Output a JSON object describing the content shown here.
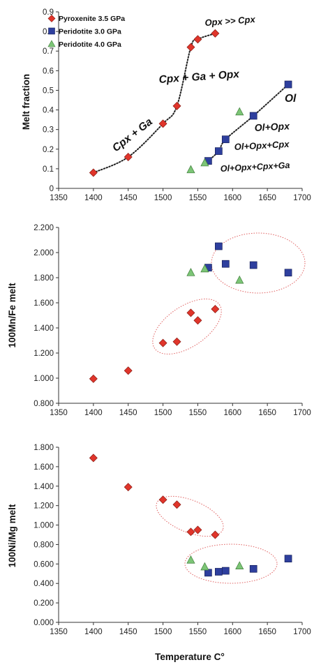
{
  "legend": [
    {
      "label": "Pyroxenite 3.5 GPa",
      "marker": "diamond",
      "color": "#e0352b"
    },
    {
      "label": "Peridotite 3.0 GPa",
      "marker": "square",
      "color": "#2e3f9e"
    },
    {
      "label": "Peridotite 4.0 GPa",
      "marker": "triangle",
      "color": "#7cc576"
    }
  ],
  "chart_data": [
    {
      "type": "scatter",
      "ylabel": "Melt fraction",
      "xlim": [
        1350,
        1700
      ],
      "ylim": [
        0,
        0.9
      ],
      "xticks": [
        "1350",
        "1400",
        "1450",
        "1500",
        "1550",
        "1600",
        "1650",
        "1700"
      ],
      "yticks": [
        "0",
        "0.1",
        "0.2",
        "0.3",
        "0.4",
        "0.5",
        "0.6",
        "0.7",
        "0.8",
        "0.9"
      ],
      "series": [
        {
          "name": "Pyroxenite 3.5 GPa",
          "x": [
            1400,
            1450,
            1500,
            1520,
            1540,
            1550,
            1575
          ],
          "y": [
            0.08,
            0.16,
            0.33,
            0.42,
            0.72,
            0.76,
            0.79
          ]
        },
        {
          "name": "Peridotite 3.0 GPa",
          "x": [
            1565,
            1580,
            1590,
            1630,
            1680
          ],
          "y": [
            0.14,
            0.19,
            0.25,
            0.37,
            0.53
          ]
        },
        {
          "name": "Peridotite 4.0 GPa",
          "x": [
            1540,
            1560,
            1610
          ],
          "y": [
            0.095,
            0.13,
            0.39
          ]
        }
      ],
      "annotations": [
        "Opx >> Cpx",
        "Cpx + Ga + Opx",
        "Cpx + Ga",
        "Ol",
        "Ol+Opx",
        "Ol+Opx+Cpx",
        "Ol+Opx+Cpx+Ga"
      ]
    },
    {
      "type": "scatter",
      "ylabel": "100Mn/Fe melt",
      "xlim": [
        1350,
        1700
      ],
      "ylim": [
        0.8,
        2.2
      ],
      "xticks": [
        "1350",
        "1400",
        "1450",
        "1500",
        "1550",
        "1600",
        "1650",
        "1700"
      ],
      "yticks": [
        "0.800",
        "1.000",
        "1.200",
        "1.400",
        "1.600",
        "1.800",
        "2.000",
        "2.200"
      ],
      "series": [
        {
          "name": "Pyroxenite 3.5 GPa",
          "x": [
            1400,
            1450,
            1500,
            1520,
            1540,
            1550,
            1575
          ],
          "y": [
            0.995,
            1.06,
            1.28,
            1.29,
            1.52,
            1.46,
            1.55
          ]
        },
        {
          "name": "Peridotite 3.0 GPa",
          "x": [
            1565,
            1580,
            1590,
            1630,
            1680
          ],
          "y": [
            1.88,
            2.05,
            1.91,
            1.9,
            1.84
          ]
        },
        {
          "name": "Peridotite 4.0 GPa",
          "x": [
            1540,
            1560,
            1610
          ],
          "y": [
            1.84,
            1.87,
            1.78
          ]
        }
      ]
    },
    {
      "type": "scatter",
      "xlabel": "Temperature C°",
      "ylabel": "100Ni/Mg melt",
      "xlim": [
        1350,
        1700
      ],
      "ylim": [
        0,
        1.8
      ],
      "xticks": [
        "1350",
        "1400",
        "1450",
        "1500",
        "1550",
        "1600",
        "1650",
        "1700"
      ],
      "yticks": [
        "0.000",
        "0.200",
        "0.400",
        "0.600",
        "0.800",
        "1.000",
        "1.200",
        "1.400",
        "1.600",
        "1.800"
      ],
      "series": [
        {
          "name": "Pyroxenite 3.5 GPa",
          "x": [
            1400,
            1450,
            1500,
            1520,
            1540,
            1550,
            1575
          ],
          "y": [
            1.69,
            1.39,
            1.26,
            1.21,
            0.93,
            0.95,
            0.9
          ]
        },
        {
          "name": "Peridotite 3.0 GPa",
          "x": [
            1565,
            1580,
            1590,
            1630,
            1680
          ],
          "y": [
            0.51,
            0.52,
            0.53,
            0.55,
            0.655
          ]
        },
        {
          "name": "Peridotite 4.0 GPa",
          "x": [
            1540,
            1560,
            1610
          ],
          "y": [
            0.64,
            0.57,
            0.58
          ]
        }
      ]
    }
  ]
}
